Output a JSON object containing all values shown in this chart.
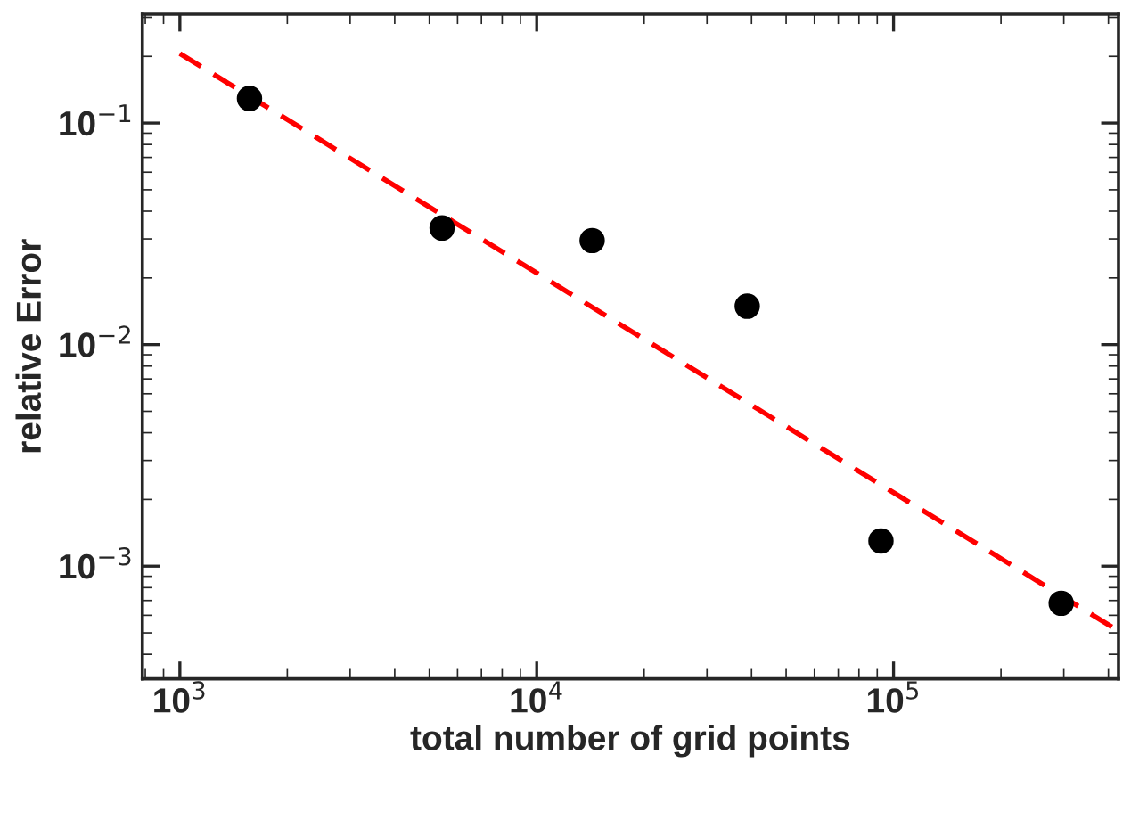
{
  "chart_data": {
    "type": "scatter",
    "xlabel": "total number of grid points",
    "ylabel": "relative Error",
    "log": "xy",
    "grid": false,
    "xlim": [
      785,
      427000
    ],
    "ylim": [
      0.00031,
      0.31
    ],
    "xticks": [
      {
        "value": 1000,
        "label": "10$^{3}$"
      },
      {
        "value": 10000,
        "label": "10$^{4}$"
      },
      {
        "value": 100000,
        "label": "10$^{5}$"
      }
    ],
    "yticks": [
      {
        "value": 0.001,
        "label": "10$^{−3}$"
      },
      {
        "value": 0.01,
        "label": "10$^{−2}$"
      },
      {
        "value": 0.1,
        "label": "10$^{−1}$"
      }
    ],
    "series": [
      {
        "color": "#000000",
        "marker": "circle",
        "x": [
          1567,
          5430,
          14300,
          38900,
          92200,
          295000
        ],
        "values": [
          0.129,
          0.0336,
          0.0295,
          0.0149,
          0.0013,
          0.00068
        ]
      },
      {
        "type": "line",
        "color": "#ff0000",
        "line_style": "dashed",
        "marker": "none",
        "x": [
          1000,
          427000
        ],
        "values": [
          0.206,
          0.00051
        ]
      }
    ]
  }
}
